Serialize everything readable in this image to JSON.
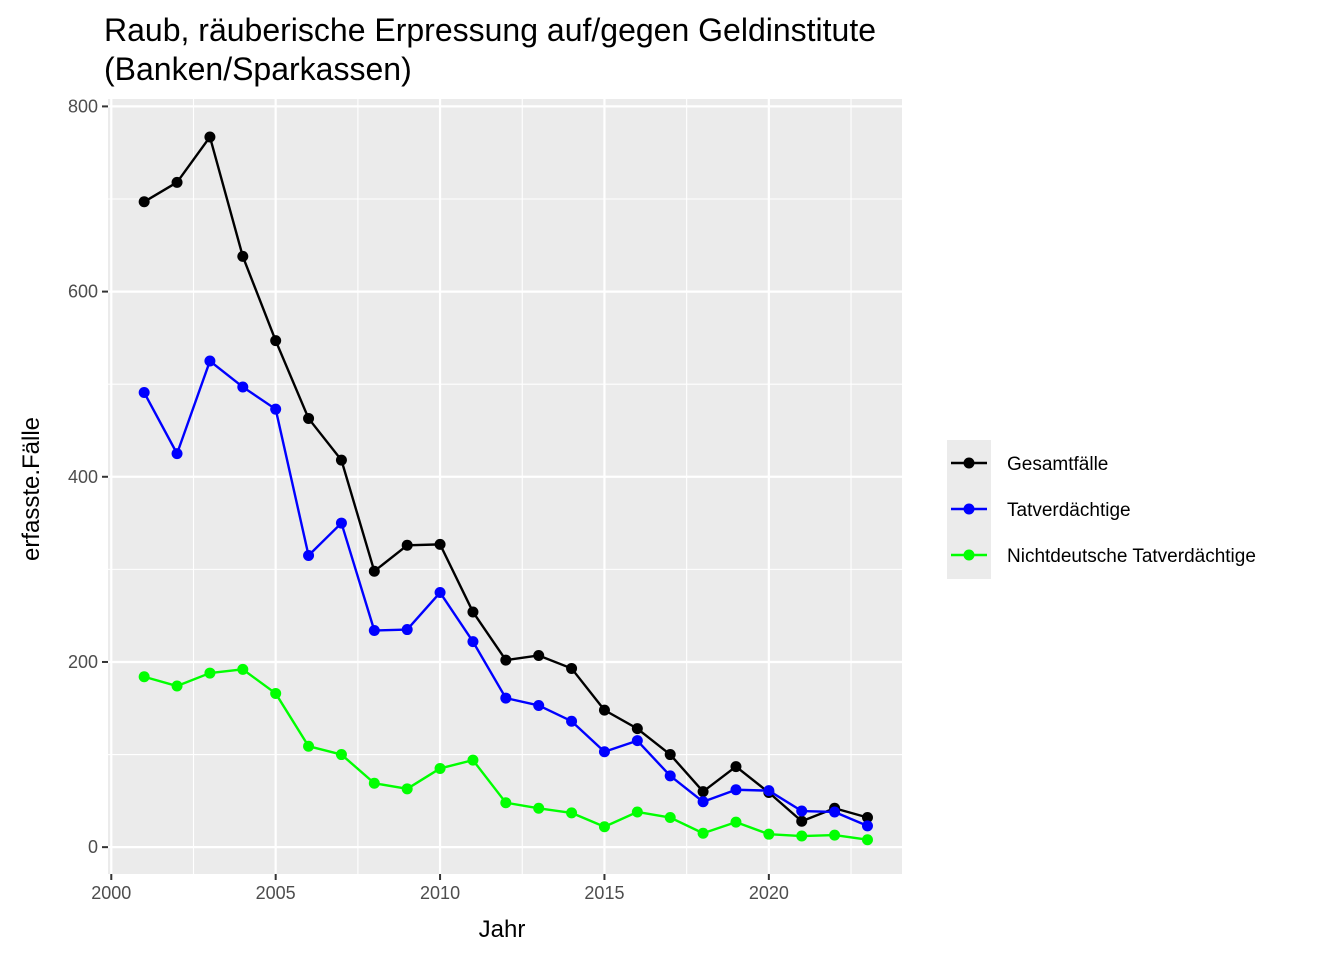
{
  "chart_data": {
    "type": "line",
    "title_lines": [
      "Raub, räuberische Erpressung auf/gegen Geldinstitute",
      "(Banken/Sparkassen)"
    ],
    "xlabel": "Jahr",
    "ylabel": "erfasste.Fälle",
    "x": [
      2001,
      2002,
      2003,
      2004,
      2005,
      2006,
      2007,
      2008,
      2009,
      2010,
      2011,
      2012,
      2013,
      2014,
      2015,
      2016,
      2017,
      2018,
      2019,
      2020,
      2021,
      2022,
      2023
    ],
    "xlim": [
      1999.9,
      2024.05
    ],
    "ylim": [
      -29,
      808
    ],
    "xticks": [
      2000,
      2005,
      2010,
      2015,
      2020
    ],
    "xtick_labels": [
      "2000",
      "2005",
      "2010",
      "2015",
      "2020"
    ],
    "yticks": [
      0,
      200,
      400,
      600,
      800
    ],
    "ytick_labels": [
      "0",
      "200",
      "400",
      "600",
      "800"
    ],
    "grid": true,
    "legend_position": "right",
    "series": [
      {
        "name": "Gesamtfälle",
        "color": "#000000",
        "values": [
          697,
          718,
          767,
          638,
          547,
          463,
          418,
          298,
          326,
          327,
          254,
          202,
          207,
          193,
          148,
          128,
          100,
          60,
          87,
          59,
          28,
          42,
          32
        ]
      },
      {
        "name": "Tatverdächtige",
        "color": "#0000ff",
        "values": [
          491,
          425,
          525,
          497,
          473,
          315,
          350,
          234,
          235,
          275,
          222,
          161,
          153,
          136,
          103,
          115,
          77,
          49,
          62,
          61,
          39,
          38,
          23
        ]
      },
      {
        "name": "Nichtdeutsche Tatverdächtige",
        "color": "#00ff00",
        "values": [
          184,
          174,
          188,
          192,
          166,
          109,
          100,
          69,
          63,
          85,
          94,
          48,
          42,
          37,
          22,
          38,
          32,
          15,
          27,
          14,
          12,
          13,
          8
        ]
      }
    ]
  }
}
